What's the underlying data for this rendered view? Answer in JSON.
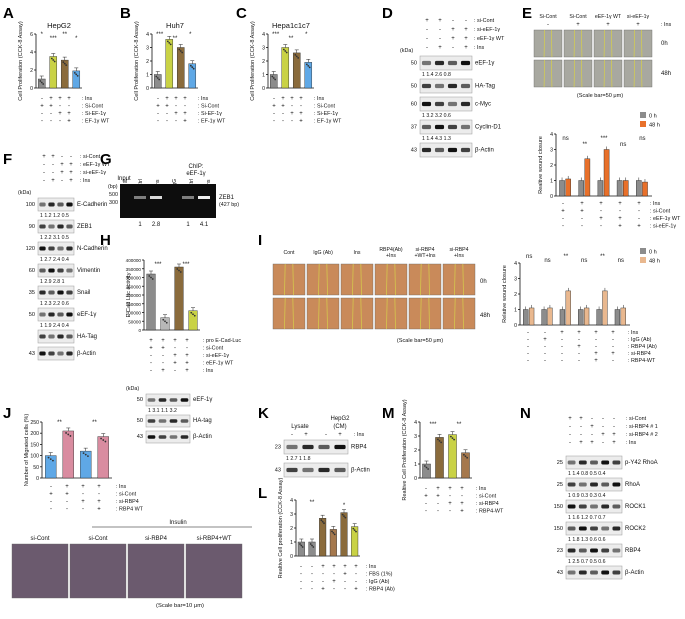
{
  "colors": {
    "bar_grey": "#8c8c8c",
    "bar_green": "#c9d245",
    "bar_olive": "#8a6b3c",
    "bar_blue": "#5fa8e6",
    "bar_orange": "#e8702a",
    "bar_peach": "#e9b88f",
    "bar_brown": "#a5784d",
    "bar_lightgrey": "#b8b8b8",
    "bar_pink": "#d98ca0"
  },
  "panels": {
    "A": {
      "letter": "A",
      "title": "HepG2",
      "ylabel": "Cell Proliferation (CCK-8 Assay)",
      "yticks": [
        "0",
        "2",
        "4",
        "6"
      ],
      "sig": [
        "*",
        "***",
        "**",
        "*"
      ],
      "conditions": [
        ": Ins",
        ": Si-Cont",
        ": Si-EF-1γ",
        ": EF-1γ WT"
      ],
      "signs": [
        [
          "-",
          "+",
          "+",
          "+"
        ],
        [
          "+",
          "+",
          "-",
          "-"
        ],
        [
          "-",
          "-",
          "+",
          "+"
        ],
        [
          "-",
          "-",
          "-",
          "+"
        ]
      ]
    },
    "B": {
      "letter": "B",
      "title": "Huh7",
      "ylabel": "Cell Proliferation (CCK-8 Assay)",
      "yticks": [
        "0",
        "1",
        "2",
        "3",
        "4"
      ],
      "sig": [
        "***",
        "**",
        "*"
      ],
      "conditions": [
        ": Ins",
        ": Si-Cont",
        ": Si-EF-1γ",
        ": EF-1γ WT"
      ],
      "signs": [
        [
          "-",
          "+",
          "+",
          "+"
        ],
        [
          "+",
          "+",
          "-",
          "-"
        ],
        [
          "-",
          "-",
          "+",
          "+"
        ],
        [
          "-",
          "-",
          "-",
          "+"
        ]
      ]
    },
    "C": {
      "letter": "C",
      "title": "Hepa1c1c7",
      "ylabel": "Cell Proliferation (CCK-8 Assay)",
      "yticks": [
        "0",
        "1",
        "2",
        "3",
        "4"
      ],
      "sig": [
        "***",
        "**",
        "*"
      ],
      "conditions": [
        ": Ins",
        ": Si-Cont",
        ": Si-EF-1γ",
        ": EF-1γ WT"
      ],
      "signs": [
        [
          "-",
          "+",
          "+",
          "+"
        ],
        [
          "+",
          "+",
          "-",
          "-"
        ],
        [
          "-",
          "-",
          "+",
          "+"
        ],
        [
          "-",
          "-",
          "-",
          "+"
        ]
      ]
    },
    "D": {
      "letter": "D",
      "conditions": [
        ": si-Cont",
        ": si-eEF-1γ",
        ": eEF-1γ WT",
        ": Ins"
      ],
      "signs": [
        [
          "+",
          "+",
          "-",
          "-"
        ],
        [
          "-",
          "-",
          "+",
          "+"
        ],
        [
          "-",
          "-",
          "+",
          "+"
        ],
        [
          "-",
          "+",
          "-",
          "+"
        ]
      ],
      "kda": "(kDa)",
      "blots": [
        {
          "mw": "50",
          "name": "eEF-1γ",
          "quant": "1   1.4  2.6  0.8"
        },
        {
          "mw": "50",
          "name": "HA-Tag",
          "quant": ""
        },
        {
          "mw": "60",
          "name": "c-Myc",
          "quant": "1   3.2  3.2  0.6"
        },
        {
          "mw": "37",
          "name": "Cyclin-D1",
          "quant": "1   1.4  4.3  1.3"
        },
        {
          "mw": "43",
          "name": "β-Actin",
          "quant": ""
        }
      ]
    },
    "E": {
      "letter": "E",
      "col_headers": [
        "Si-Cont",
        "Si-Cont",
        "eEF-1γ WT",
        "si-eEF-1γ"
      ],
      "ins_signs": [
        "-",
        "+",
        "+",
        "+"
      ],
      "ins_label": ": Ins",
      "rows": [
        "0h",
        "48h"
      ],
      "scale": "(Scale bar=50 μm)",
      "ylabel": "Realtive wound closure",
      "legend": [
        "0 h",
        "48 h"
      ],
      "sig": [
        "ns",
        "**",
        "***",
        "ns",
        "ns"
      ],
      "yticks": [
        "0",
        "1",
        "2",
        "3",
        "4"
      ],
      "conditions": [
        ": Ins",
        ": si-Cont",
        ": eEF-1γ WT",
        ": si-eEF-1γ"
      ],
      "signs": [
        [
          "-",
          "+",
          "+",
          "+",
          "+"
        ],
        [
          "+",
          "+",
          "-",
          "-",
          "-"
        ],
        [
          "-",
          "-",
          "+",
          "+",
          "-"
        ],
        [
          "-",
          "-",
          "-",
          "+",
          "+"
        ]
      ]
    },
    "F": {
      "letter": "F",
      "conditions": [
        ": si-Cont",
        ": eEF-1γ WT",
        ": si-eEF-1γ",
        ": Ins"
      ],
      "signs": [
        [
          "+",
          "+",
          "-",
          "-"
        ],
        [
          "-",
          "-",
          "+",
          "+"
        ],
        [
          "-",
          "-",
          "+",
          "+"
        ],
        [
          "-",
          "+",
          "-",
          "+"
        ]
      ],
      "kda": "(kDa)",
      "blots": [
        {
          "mw": "100",
          "name": "E-Cadherin",
          "quant": "1  1.2  1.2  0.5"
        },
        {
          "mw": "90",
          "name": "ZEB1",
          "quant": "1  2.2  3.1  0.5"
        },
        {
          "mw": "120",
          "name": "N-Cadherin",
          "quant": "1  2.7  2.4  0.4"
        },
        {
          "mw": "60",
          "name": "Vimentin",
          "quant": "1  2.9  2.8  1"
        },
        {
          "mw": "35",
          "name": "Snail",
          "quant": "1  2.3  2.2  0.6"
        },
        {
          "mw": "50",
          "name": "eEF-1γ",
          "quant": "1  1.9  2.4  0.4"
        },
        {
          "mw": "",
          "name": "HA-Tag",
          "quant": ""
        },
        {
          "mw": "43",
          "name": "β-Actin",
          "quant": ""
        }
      ]
    },
    "G": {
      "letter": "G",
      "bp": "(bp)",
      "markers": [
        "500",
        "300"
      ],
      "group_input": "Input",
      "group_chip": "ChIP:\neEF-1γ",
      "lanes": [
        "M",
        "Ctrl",
        "Ins",
        "IgG",
        "Ctrl",
        "Ins"
      ],
      "gene": "ZEB1",
      "product": "(427 bp)",
      "quant": [
        "1",
        "2.8",
        "1",
        "4.1"
      ]
    },
    "H": {
      "letter": "H",
      "ylabel": "E-Cad Luc activity",
      "yticks": [
        "0",
        "50000",
        "100000",
        "150000",
        "200000",
        "250000",
        "300000",
        "350000",
        "400000"
      ],
      "sig": [
        "***",
        "***"
      ],
      "conditions": [
        ": pro E-Cad-Luc",
        ": si-Cont",
        ": si-eEF-1γ",
        ": eEF-1γ WT",
        ": Ins"
      ],
      "signs": [
        [
          "+",
          "+",
          "+",
          "+"
        ],
        [
          "+",
          "+",
          "-",
          "-"
        ],
        [
          "-",
          "-",
          "+",
          "+"
        ],
        [
          "-",
          "-",
          "+",
          "+"
        ],
        [
          "-",
          "+",
          "-",
          "+"
        ]
      ],
      "kda": "(kDa)",
      "blots": [
        {
          "mw": "50",
          "name": "eEF-1γ",
          "quant": "1  3.1  1.1  3.2"
        },
        {
          "mw": "50",
          "name": "HA-tag",
          "quant": ""
        },
        {
          "mw": "43",
          "name": "β-Actin",
          "quant": ""
        }
      ]
    },
    "I": {
      "letter": "I",
      "col_headers": [
        "Cont",
        "IgG (Ab)",
        "Ins",
        "RBP4(Ab)\n+Ins",
        "si-RBP4\n+WT+Ins",
        "si-RBP4\n+Ins"
      ],
      "rows": [
        "0h",
        "48h"
      ],
      "scale": "(Scale bar=50 μm)",
      "ylabel": "Relative wound closure",
      "legend": [
        "0 h",
        "48 h"
      ],
      "sig": [
        "ns",
        "ns",
        "**",
        "ns",
        "**",
        "ns"
      ],
      "yticks": [
        "0",
        "1",
        "2",
        "3",
        "4"
      ],
      "conditions": [
        ": Ins",
        ": IgG (Ab)",
        ": RBP4 (Ab)",
        ": si-RBP4",
        ": RBP4-WT"
      ],
      "signs": [
        [
          "-",
          "-",
          "+",
          "+",
          "+",
          "+"
        ],
        [
          "-",
          "+",
          "-",
          "-",
          "-",
          "-"
        ],
        [
          "-",
          "-",
          "-",
          "+",
          "-",
          "-"
        ],
        [
          "-",
          "-",
          "-",
          "-",
          "+",
          "+"
        ],
        [
          "-",
          "-",
          "-",
          "-",
          "+",
          "-"
        ]
      ]
    },
    "J": {
      "letter": "J",
      "ylabel": "Number of Migrated cells (%)",
      "yticks": [
        "0",
        "50",
        "100",
        "150",
        "200",
        "250"
      ],
      "sig": [
        "**",
        "**"
      ],
      "conditions": [
        ": Ins",
        ": si-Cont",
        ": si-RBP4",
        ": RBP4 WT"
      ],
      "signs": [
        [
          "-",
          "+",
          "+",
          "+"
        ],
        [
          "+",
          "+",
          "-",
          "-"
        ],
        [
          "-",
          "-",
          "+",
          "+"
        ],
        [
          "-",
          "-",
          "-",
          "+"
        ]
      ],
      "insulin": "Insulin",
      "images": [
        "si-Cont",
        "si-Cont",
        "si-RBP4",
        "si-RBP4+WT"
      ],
      "scale": "(Scale bar=10 μm)"
    },
    "K": {
      "letter": "K",
      "cell": "HepG2",
      "groups": [
        "Lysate",
        "(CM)"
      ],
      "ins_label": ": Ins",
      "ins_signs": [
        "-",
        "+",
        "-",
        "+"
      ],
      "blots": [
        {
          "mw": "23",
          "name": "RBP4",
          "quant": "1  2.7      1  1.8"
        },
        {
          "mw": "43",
          "name": "β-Actin",
          "quant": ""
        }
      ]
    },
    "L": {
      "letter": "L",
      "ylabel": "Realtive Cell proliferation (CCK-8 Assay)",
      "yticks": [
        "0",
        "1",
        "2",
        "3",
        "4"
      ],
      "sig": [
        "**",
        "*"
      ],
      "conditions": [
        ": Ins",
        ": FBS (1%)",
        ": IgG (Ab)",
        ": RBP4 (Ab)"
      ],
      "signs": [
        [
          "-",
          "-",
          "+",
          "+",
          "+",
          "+"
        ],
        [
          "-",
          "-",
          "-",
          "-",
          "+",
          "-"
        ],
        [
          "-",
          "-",
          "-",
          "+",
          "-",
          "-"
        ],
        [
          "-",
          "-",
          "+",
          "-",
          "-",
          "+"
        ]
      ]
    },
    "M": {
      "letter": "M",
      "ylabel": "Realtive Cell Proliferation (CCK-8 Assay)",
      "yticks": [
        "0",
        "1",
        "2",
        "3",
        "4"
      ],
      "sig": [
        "***",
        "**"
      ],
      "conditions": [
        ": Ins",
        ": si-Cont",
        ": si-RBP4",
        ": RBP4-WT"
      ],
      "signs": [
        [
          "-",
          "+",
          "+",
          "+"
        ],
        [
          "+",
          "+",
          "-",
          "-"
        ],
        [
          "-",
          "-",
          "+",
          "+"
        ],
        [
          "-",
          "-",
          "-",
          "+"
        ]
      ]
    },
    "N": {
      "letter": "N",
      "conditions": [
        ": si-Cont",
        ": si-RBP4 # 1",
        ": si-RBP4 # 2",
        ": Ins"
      ],
      "signs": [
        [
          "+",
          "+",
          "-",
          "-",
          "-"
        ],
        [
          "-",
          "-",
          "+",
          "-",
          "-"
        ],
        [
          "-",
          "-",
          "-",
          "+",
          "+"
        ],
        [
          "-",
          "+",
          "+",
          "-",
          "+"
        ]
      ],
      "blots": [
        {
          "mw": "25",
          "name": "p-Y42 RhoA",
          "quant": "1   1.4   0.8   0.5   0.4"
        },
        {
          "mw": "25",
          "name": "RhoA",
          "quant": "1   0.9   0.3   0.3   0.4"
        },
        {
          "mw": "150",
          "name": "ROCK1",
          "quant": "1   1.6   1.2   0.7   0.7"
        },
        {
          "mw": "150",
          "name": "ROCK2",
          "quant": "1   1.8   1.3   0.6   0.6"
        },
        {
          "mw": "23",
          "name": "RBP4",
          "quant": "1   2.5   0.7   0.5   0.6"
        },
        {
          "mw": "43",
          "name": "β-Actin",
          "quant": ""
        }
      ]
    }
  },
  "chart_data": [
    {
      "panel": "A",
      "type": "bar",
      "title": "HepG2",
      "ylabel": "Cell Proliferation (CCK-8 Assay)",
      "ylim": [
        0,
        6
      ],
      "values": [
        1.0,
        3.5,
        3.1,
        1.9
      ]
    },
    {
      "panel": "B",
      "type": "bar",
      "title": "Huh7",
      "ylabel": "Cell Proliferation (CCK-8 Assay)",
      "ylim": [
        0,
        4
      ],
      "values": [
        1.0,
        3.6,
        3.0,
        1.8
      ]
    },
    {
      "panel": "C",
      "type": "bar",
      "title": "Hepa1c1c7",
      "ylabel": "Cell Proliferation (CCK-8 Assay)",
      "ylim": [
        0,
        4
      ],
      "values": [
        1.0,
        3.0,
        2.6,
        1.9
      ]
    },
    {
      "panel": "E",
      "type": "bar",
      "ylabel": "Realtive wound closure",
      "ylim": [
        0,
        4
      ],
      "series": [
        {
          "name": "0 h",
          "values": [
            1,
            1,
            1,
            1,
            1
          ]
        },
        {
          "name": "48 h",
          "values": [
            1.1,
            2.4,
            3.0,
            1.0,
            0.9
          ]
        }
      ]
    },
    {
      "panel": "H",
      "type": "bar",
      "ylabel": "E-Cad Luc activity",
      "ylim": [
        0,
        400000
      ],
      "values": [
        320000,
        70000,
        360000,
        110000
      ]
    },
    {
      "panel": "I",
      "type": "bar",
      "ylabel": "Relative wound closure",
      "ylim": [
        0,
        4
      ],
      "series": [
        {
          "name": "0 h",
          "values": [
            1,
            1,
            1,
            1,
            1,
            1
          ]
        },
        {
          "name": "48 h",
          "values": [
            1.1,
            1.1,
            2.2,
            1.1,
            2.2,
            1.1
          ]
        }
      ]
    },
    {
      "panel": "J",
      "type": "bar",
      "ylabel": "Number of Migrated cells (%)",
      "ylim": [
        0,
        250
      ],
      "values": [
        100,
        210,
        120,
        185
      ]
    },
    {
      "panel": "L",
      "type": "bar",
      "ylabel": "Realtive Cell proliferation (CCK-8 Assay)",
      "ylim": [
        0,
        4
      ],
      "values": [
        1.0,
        1.0,
        2.7,
        1.9,
        3.1,
        2.1
      ]
    },
    {
      "panel": "M",
      "type": "bar",
      "ylabel": "Realtive Cell Proliferation (CCK-8 Assay)",
      "ylim": [
        0,
        4
      ],
      "values": [
        1.0,
        2.9,
        3.1,
        1.8
      ]
    }
  ]
}
